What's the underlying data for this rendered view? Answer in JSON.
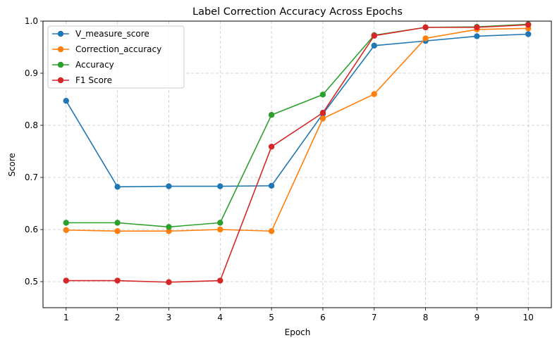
{
  "chart_data": {
    "type": "line",
    "title": "Label Correction Accuracy Across Epochs",
    "xlabel": "Epoch",
    "ylabel": "Score",
    "x": [
      1,
      2,
      3,
      4,
      5,
      6,
      7,
      8,
      9,
      10
    ],
    "xlim": [
      0.55,
      10.45
    ],
    "ylim": [
      0.45,
      1.0
    ],
    "yticks": [
      0.5,
      0.6,
      0.7,
      0.8,
      0.9,
      1.0
    ],
    "ytick_labels": [
      "0.5",
      "0.6",
      "0.7",
      "0.8",
      "0.9",
      "1.0"
    ],
    "grid": true,
    "legend_position": "top-left",
    "series": [
      {
        "name": "V_measure_score",
        "color": "#1f77b4",
        "values": [
          0.847,
          0.682,
          0.683,
          0.683,
          0.684,
          0.822,
          0.953,
          0.962,
          0.971,
          0.975
        ]
      },
      {
        "name": "Correction_accuracy",
        "color": "#ff7f0e",
        "values": [
          0.599,
          0.597,
          0.597,
          0.6,
          0.597,
          0.813,
          0.86,
          0.967,
          0.984,
          0.986
        ]
      },
      {
        "name": "Accuracy",
        "color": "#2ca02c",
        "values": [
          0.613,
          0.613,
          0.605,
          0.613,
          0.82,
          0.859,
          0.973,
          0.988,
          0.989,
          0.994
        ]
      },
      {
        "name": "F1 Score",
        "color": "#d62728",
        "values": [
          0.502,
          0.502,
          0.499,
          0.502,
          0.759,
          0.824,
          0.972,
          0.988,
          0.988,
          0.993
        ]
      }
    ]
  }
}
